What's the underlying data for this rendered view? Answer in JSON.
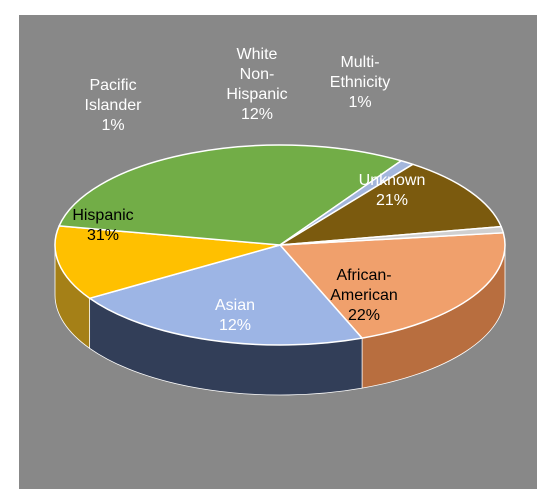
{
  "header_text_partial": "",
  "chart_data": {
    "type": "pie",
    "style": "3d-tilted",
    "categories": [
      "Unknown",
      "African-American",
      "Asian",
      "Hispanic",
      "Pacific Islander",
      "White Non-Hispanic",
      "Multi-Ethnicity"
    ],
    "values": [
      21,
      22,
      12,
      31,
      1,
      12,
      1
    ],
    "labels": [
      {
        "lines": [
          "Unknown",
          "21%"
        ],
        "color": "#ffffff"
      },
      {
        "lines": [
          "African-",
          "American",
          "22%"
        ],
        "color": "#000000"
      },
      {
        "lines": [
          "Asian",
          "12%"
        ],
        "color": "#ffffff"
      },
      {
        "lines": [
          "Hispanic",
          "31%"
        ],
        "color": "#000000"
      },
      {
        "lines": [
          "Pacific",
          "Islander",
          "1%"
        ],
        "color": "#ffffff"
      },
      {
        "lines": [
          "White",
          "Non-",
          "Hispanic",
          "12%"
        ],
        "color": "#ffffff"
      },
      {
        "lines": [
          "Multi-",
          "Ethnicity",
          "1%"
        ],
        "color": "#ffffff"
      }
    ],
    "colors": [
      "#f0a06c",
      "#9db5e5",
      "#ffc000",
      "#72ad47",
      "#a3b6dc",
      "#7b5a0e",
      "#d0d0d0"
    ],
    "side_colors": [
      "#b86e3f",
      "#323e58",
      "#a58017",
      "#4a7a2c",
      "#6f84a8",
      "#4e3906",
      "#999999"
    ],
    "title": "",
    "legend": "none"
  }
}
